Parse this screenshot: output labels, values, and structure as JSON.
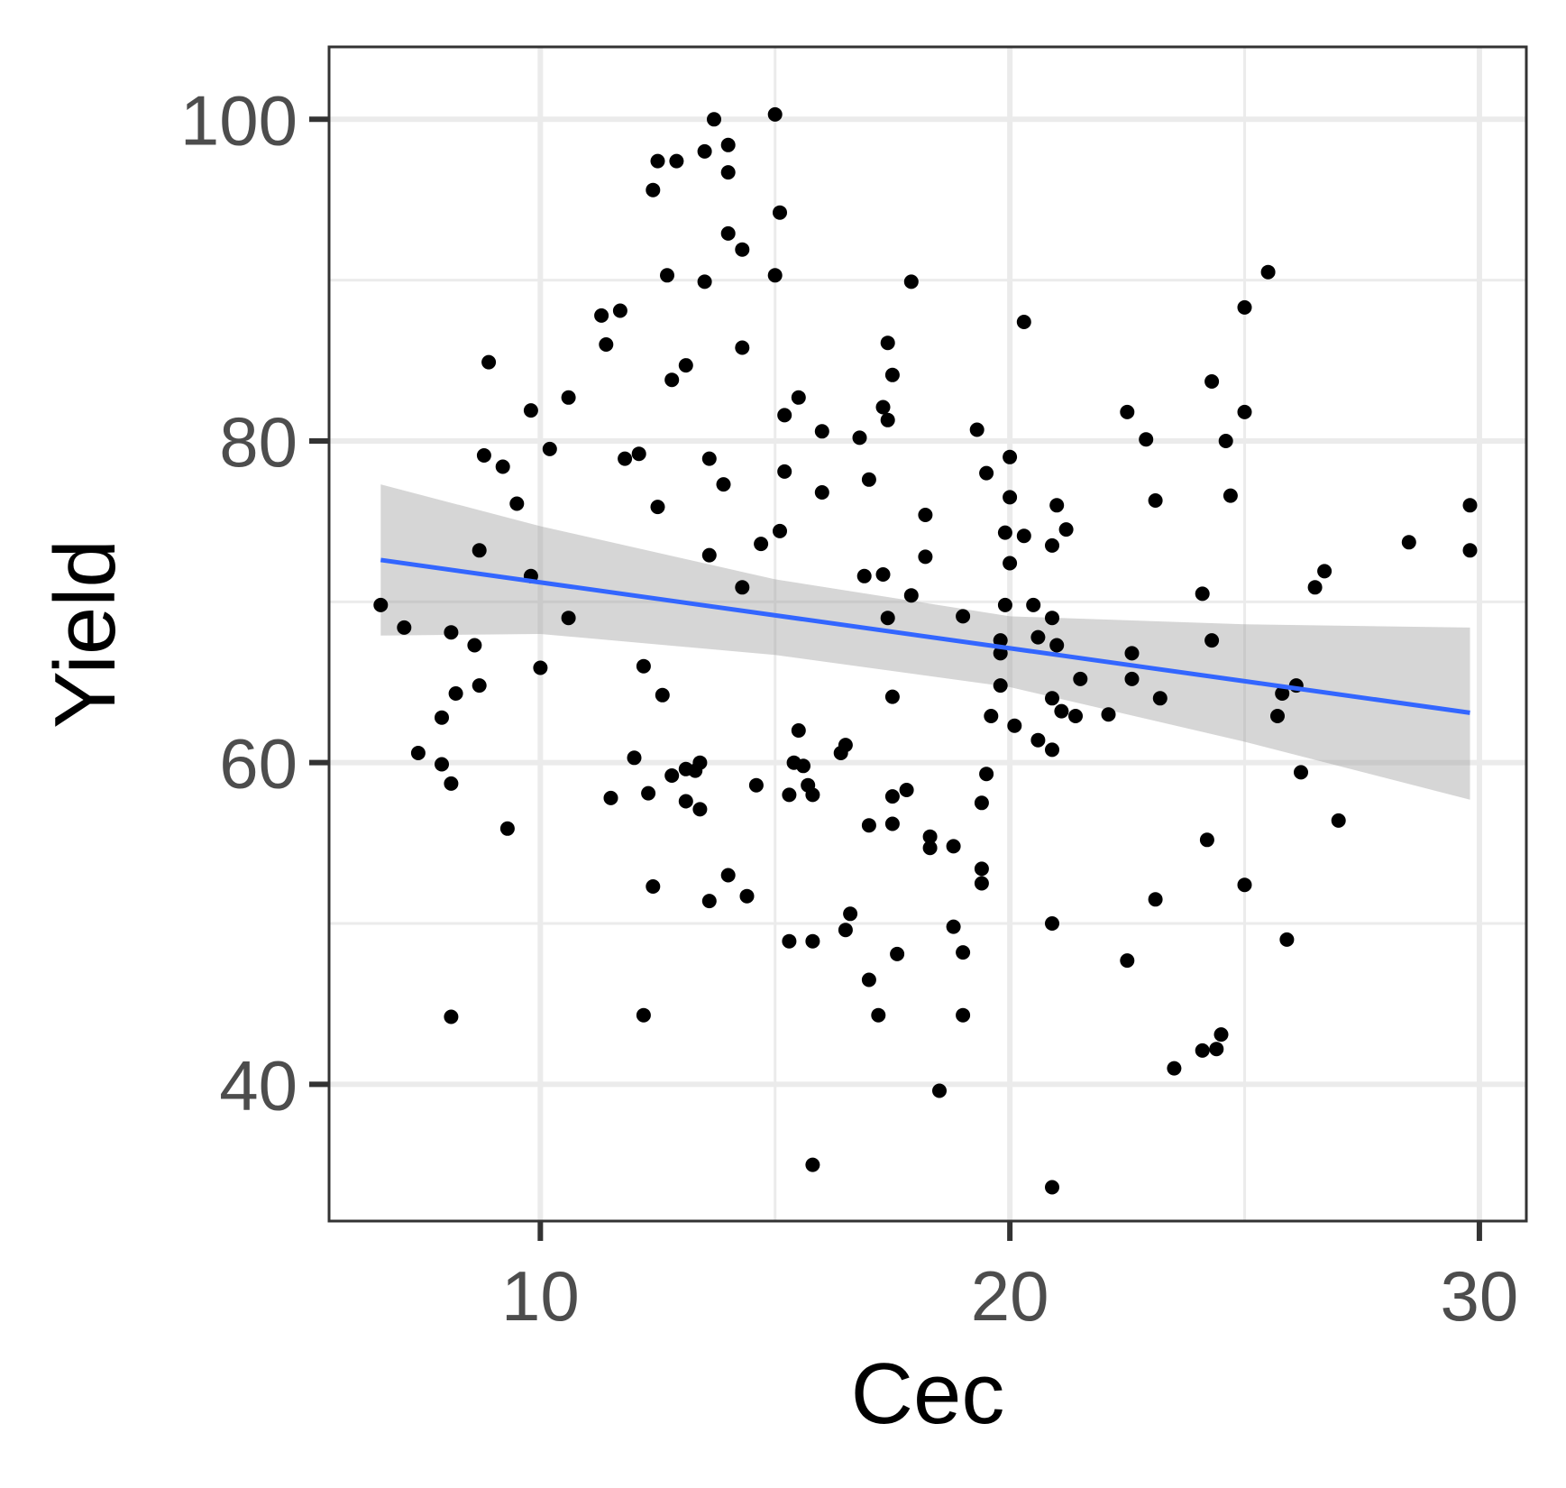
{
  "chart_data": {
    "type": "scatter",
    "title": "",
    "xlabel": "Cec",
    "ylabel": "Yield",
    "xlim": [
      5.5,
      31
    ],
    "ylim": [
      31.5,
      104.5
    ],
    "x_ticks": [
      10,
      20,
      30
    ],
    "y_ticks": [
      40,
      60,
      80,
      100
    ],
    "x_tick_labels": [
      "10",
      "20",
      "30"
    ],
    "y_tick_labels": [
      "40",
      "60",
      "80",
      "100"
    ],
    "grid": true,
    "legend": "none",
    "point_color": "#000000",
    "points": [
      [
        6.6,
        69.8
      ],
      [
        7.1,
        68.4
      ],
      [
        7.4,
        60.6
      ],
      [
        7.9,
        62.8
      ],
      [
        7.9,
        59.9
      ],
      [
        8.1,
        68.1
      ],
      [
        8.1,
        58.7
      ],
      [
        8.2,
        64.3
      ],
      [
        8.1,
        44.2
      ],
      [
        8.6,
        67.3
      ],
      [
        8.7,
        64.8
      ],
      [
        8.7,
        73.2
      ],
      [
        8.8,
        79.1
      ],
      [
        8.9,
        84.9
      ],
      [
        9.2,
        78.4
      ],
      [
        9.3,
        55.9
      ],
      [
        9.5,
        76.1
      ],
      [
        9.8,
        81.9
      ],
      [
        9.8,
        71.6
      ],
      [
        10.0,
        65.9
      ],
      [
        10.2,
        79.5
      ],
      [
        10.6,
        82.7
      ],
      [
        10.6,
        69.0
      ],
      [
        11.3,
        87.8
      ],
      [
        11.4,
        86.0
      ],
      [
        11.5,
        57.8
      ],
      [
        11.7,
        88.1
      ],
      [
        11.8,
        78.9
      ],
      [
        12.0,
        60.3
      ],
      [
        12.1,
        79.2
      ],
      [
        12.2,
        66.0
      ],
      [
        12.2,
        44.3
      ],
      [
        12.3,
        58.1
      ],
      [
        12.4,
        95.6
      ],
      [
        12.4,
        52.3
      ],
      [
        12.5,
        97.4
      ],
      [
        12.5,
        75.9
      ],
      [
        12.6,
        64.2
      ],
      [
        12.7,
        90.3
      ],
      [
        12.8,
        83.8
      ],
      [
        12.8,
        59.2
      ],
      [
        12.9,
        97.4
      ],
      [
        13.1,
        84.7
      ],
      [
        13.1,
        59.6
      ],
      [
        13.1,
        57.6
      ],
      [
        13.3,
        59.5
      ],
      [
        13.4,
        60.0
      ],
      [
        13.4,
        57.1
      ],
      [
        13.5,
        98.0
      ],
      [
        13.5,
        89.9
      ],
      [
        13.6,
        78.9
      ],
      [
        13.6,
        72.9
      ],
      [
        13.6,
        51.4
      ],
      [
        13.7,
        100.0
      ],
      [
        13.9,
        77.3
      ],
      [
        14.0,
        98.4
      ],
      [
        14.0,
        96.7
      ],
      [
        14.0,
        92.9
      ],
      [
        14.0,
        53.0
      ],
      [
        14.3,
        91.9
      ],
      [
        14.3,
        85.8
      ],
      [
        14.3,
        70.9
      ],
      [
        14.4,
        51.7
      ],
      [
        14.6,
        58.6
      ],
      [
        14.7,
        73.6
      ],
      [
        15.0,
        100.3
      ],
      [
        15.0,
        90.3
      ],
      [
        15.1,
        94.2
      ],
      [
        15.1,
        74.4
      ],
      [
        15.2,
        81.6
      ],
      [
        15.2,
        78.1
      ],
      [
        15.3,
        58.0
      ],
      [
        15.3,
        48.9
      ],
      [
        15.4,
        60.0
      ],
      [
        15.5,
        82.7
      ],
      [
        15.5,
        62.0
      ],
      [
        15.6,
        59.8
      ],
      [
        15.7,
        58.6
      ],
      [
        15.8,
        58.0
      ],
      [
        15.8,
        48.9
      ],
      [
        15.8,
        35.0
      ],
      [
        16.0,
        80.6
      ],
      [
        16.0,
        76.8
      ],
      [
        16.4,
        60.6
      ],
      [
        16.5,
        61.1
      ],
      [
        16.5,
        49.6
      ],
      [
        16.6,
        50.6
      ],
      [
        16.8,
        80.2
      ],
      [
        16.9,
        71.6
      ],
      [
        17.0,
        77.6
      ],
      [
        17.0,
        56.1
      ],
      [
        17.0,
        46.5
      ],
      [
        17.2,
        44.3
      ],
      [
        17.3,
        82.1
      ],
      [
        17.3,
        71.7
      ],
      [
        17.4,
        86.1
      ],
      [
        17.4,
        81.3
      ],
      [
        17.4,
        69.0
      ],
      [
        17.5,
        84.1
      ],
      [
        17.5,
        64.1
      ],
      [
        17.5,
        57.9
      ],
      [
        17.5,
        56.2
      ],
      [
        17.6,
        48.1
      ],
      [
        17.8,
        58.3
      ],
      [
        17.9,
        89.9
      ],
      [
        17.9,
        70.4
      ],
      [
        18.2,
        75.4
      ],
      [
        18.2,
        72.8
      ],
      [
        18.3,
        55.4
      ],
      [
        18.3,
        54.7
      ],
      [
        18.5,
        39.6
      ],
      [
        18.8,
        54.8
      ],
      [
        18.8,
        49.8
      ],
      [
        19.0,
        69.1
      ],
      [
        19.0,
        48.2
      ],
      [
        19.0,
        44.3
      ],
      [
        19.3,
        80.7
      ],
      [
        19.4,
        53.4
      ],
      [
        19.4,
        52.5
      ],
      [
        19.4,
        57.5
      ],
      [
        19.5,
        78.0
      ],
      [
        19.5,
        59.3
      ],
      [
        19.6,
        62.9
      ],
      [
        19.8,
        67.6
      ],
      [
        19.8,
        66.8
      ],
      [
        19.8,
        64.8
      ],
      [
        19.9,
        74.3
      ],
      [
        19.9,
        69.8
      ],
      [
        20.0,
        79.0
      ],
      [
        20.0,
        76.5
      ],
      [
        20.0,
        72.4
      ],
      [
        20.1,
        62.3
      ],
      [
        20.3,
        87.4
      ],
      [
        20.3,
        74.1
      ],
      [
        20.5,
        69.8
      ],
      [
        20.6,
        67.8
      ],
      [
        20.6,
        61.4
      ],
      [
        20.9,
        73.5
      ],
      [
        20.9,
        69.0
      ],
      [
        20.9,
        64.0
      ],
      [
        20.9,
        60.8
      ],
      [
        20.9,
        50.0
      ],
      [
        20.9,
        33.6
      ],
      [
        21.0,
        76.0
      ],
      [
        21.0,
        67.3
      ],
      [
        21.1,
        63.2
      ],
      [
        21.2,
        74.5
      ],
      [
        21.4,
        62.9
      ],
      [
        21.5,
        65.2
      ],
      [
        22.1,
        63.0
      ],
      [
        22.5,
        81.8
      ],
      [
        22.5,
        47.7
      ],
      [
        22.6,
        66.8
      ],
      [
        22.6,
        65.2
      ],
      [
        22.9,
        80.1
      ],
      [
        23.1,
        76.3
      ],
      [
        23.1,
        51.5
      ],
      [
        23.2,
        64.0
      ],
      [
        23.5,
        41.0
      ],
      [
        24.1,
        70.5
      ],
      [
        24.1,
        42.1
      ],
      [
        24.2,
        55.2
      ],
      [
        24.3,
        83.7
      ],
      [
        24.3,
        67.6
      ],
      [
        24.4,
        42.2
      ],
      [
        24.5,
        43.1
      ],
      [
        24.6,
        80.0
      ],
      [
        24.7,
        76.6
      ],
      [
        25.0,
        88.3
      ],
      [
        25.0,
        81.8
      ],
      [
        25.0,
        52.4
      ],
      [
        25.5,
        90.5
      ],
      [
        25.7,
        62.9
      ],
      [
        25.8,
        64.3
      ],
      [
        25.9,
        49.0
      ],
      [
        26.1,
        64.8
      ],
      [
        26.2,
        59.4
      ],
      [
        26.5,
        70.9
      ],
      [
        26.7,
        71.9
      ],
      [
        27.0,
        56.4
      ],
      [
        28.5,
        73.7
      ],
      [
        29.8,
        76.0
      ],
      [
        29.8,
        73.2
      ]
    ],
    "trend_line": {
      "x": [
        6.6,
        29.8
      ],
      "y": [
        72.6,
        63.1
      ],
      "color": "#3366ff"
    },
    "confidence_band": {
      "x": [
        6.6,
        10,
        15,
        20,
        25,
        29.8
      ],
      "upper": [
        77.3,
        74.7,
        71.4,
        69.1,
        68.6,
        68.4
      ],
      "lower": [
        67.9,
        68.0,
        66.7,
        64.7,
        61.3,
        57.7
      ],
      "color": "#999999"
    }
  }
}
